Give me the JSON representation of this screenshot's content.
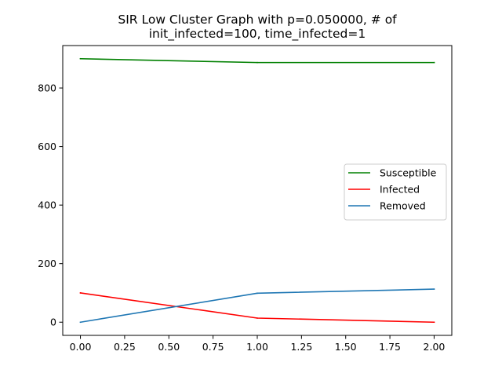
{
  "chart_data": {
    "type": "line",
    "title_lines": [
      "SIR Low Cluster Graph with p=0.050000, # of",
      "init_infected=100, time_infected=1"
    ],
    "xlabel": "",
    "ylabel": "",
    "x": [
      0,
      1,
      2
    ],
    "series": [
      {
        "name": "Susceptible",
        "color": "#008000",
        "values": [
          900,
          887,
          887
        ]
      },
      {
        "name": "Infected",
        "color": "#ff0000",
        "values": [
          100,
          14,
          0
        ]
      },
      {
        "name": "Removed",
        "color": "#1f77b4",
        "values": [
          0,
          99,
          113
        ]
      }
    ],
    "xlim": [
      -0.1,
      2.1
    ],
    "ylim": [
      -45,
      945
    ],
    "xticks": [
      0.0,
      0.25,
      0.5,
      0.75,
      1.0,
      1.25,
      1.5,
      1.75,
      2.0
    ],
    "xtick_labels": [
      "0.00",
      "0.25",
      "0.50",
      "0.75",
      "1.00",
      "1.25",
      "1.50",
      "1.75",
      "2.00"
    ],
    "yticks": [
      0,
      200,
      400,
      600,
      800
    ],
    "ytick_labels": [
      "0",
      "200",
      "400",
      "600",
      "800"
    ],
    "grid": false,
    "legend_position": "center-right"
  }
}
